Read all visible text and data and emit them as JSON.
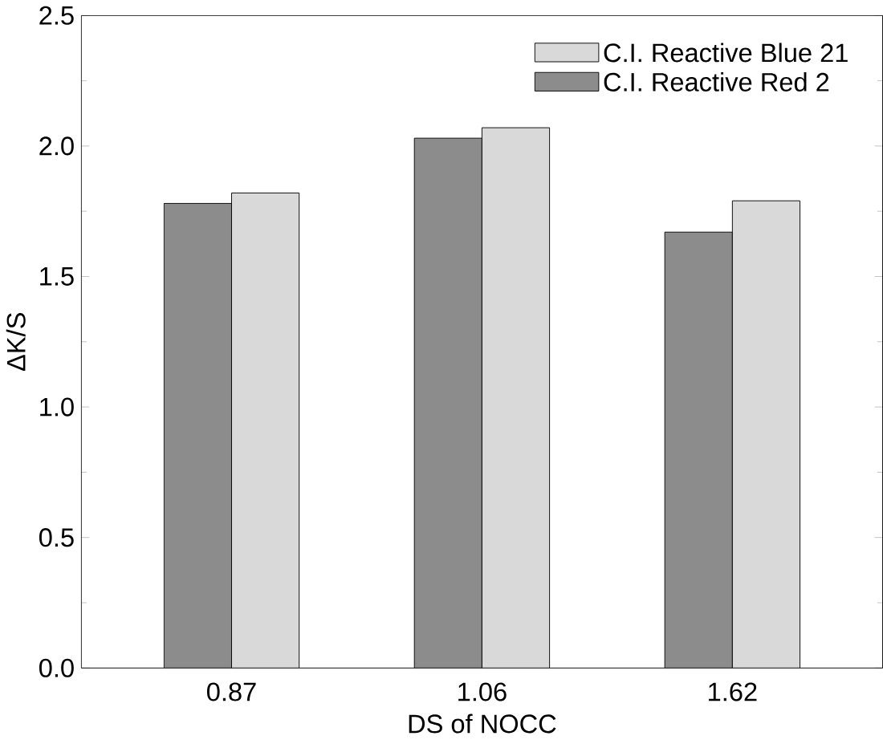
{
  "chart_data": {
    "type": "bar",
    "xlabel": "DS of NOCC",
    "ylabel": "ΔK/S",
    "categories": [
      "0.87",
      "1.06",
      "1.62"
    ],
    "series": [
      {
        "name": "C.I. Reactive Red 2",
        "color": "#8c8c8c",
        "values": [
          1.78,
          2.03,
          1.67
        ]
      },
      {
        "name": "C.I. Reactive Blue 21",
        "color": "#d9d9d9",
        "values": [
          1.82,
          2.07,
          1.79
        ]
      }
    ],
    "ylim": [
      0,
      2.5
    ],
    "yticks": [
      {
        "value": 0,
        "label": "0.0"
      },
      {
        "value": 0.5,
        "label": "0.5"
      },
      {
        "value": 1,
        "label": "1.0"
      },
      {
        "value": 1.5,
        "label": "1.5"
      },
      {
        "value": 2,
        "label": "2.0"
      },
      {
        "value": 2.5,
        "label": "2.5"
      }
    ],
    "legend": "top right",
    "grid": false
  }
}
